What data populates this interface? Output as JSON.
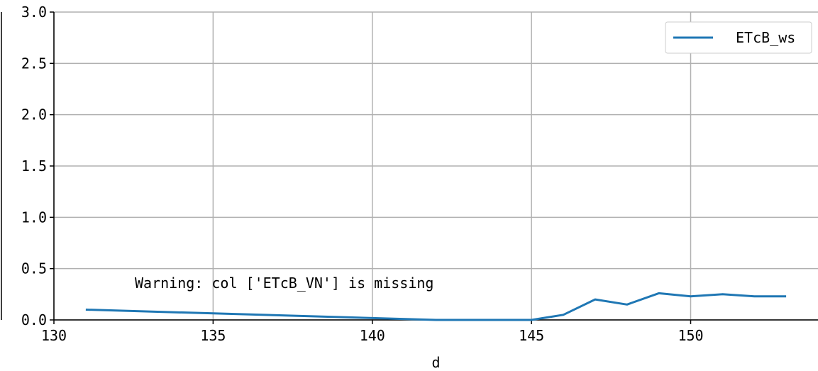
{
  "chart_data": {
    "type": "line",
    "xlabel": "d",
    "ylabel": "",
    "xlim": [
      130,
      154
    ],
    "ylim": [
      0,
      3.0
    ],
    "xticks": [
      130,
      135,
      140,
      145,
      150
    ],
    "yticks": [
      0.0,
      0.5,
      1.0,
      1.5,
      2.0,
      2.5,
      3.0
    ],
    "ytick_labels": [
      "0.0",
      "0.5",
      "1.0",
      "1.5",
      "2.0",
      "2.5",
      "3.0"
    ],
    "grid": true,
    "legend_position": "top-right",
    "series": [
      {
        "name": "ETcB_ws",
        "color": "#1f77b4",
        "x": [
          131,
          142,
          145,
          146,
          147,
          148,
          149,
          150,
          151,
          152,
          153
        ],
        "y": [
          0.1,
          0.0,
          0.0,
          0.05,
          0.2,
          0.15,
          0.26,
          0.23,
          0.25,
          0.23,
          0.23
        ]
      }
    ],
    "annotation": "Warning: col ['ETcB_VN'] is missing"
  }
}
